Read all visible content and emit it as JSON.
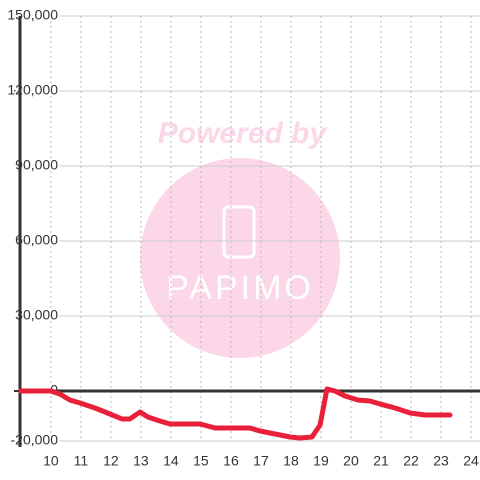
{
  "chart_data": {
    "type": "line",
    "watermark": {
      "line1": "Powered by",
      "line2": "PAPIMO"
    },
    "x": [
      9.0,
      10.0,
      10.3,
      10.63,
      10.97,
      11.47,
      11.97,
      12.37,
      12.63,
      12.97,
      13.23,
      13.63,
      13.97,
      14.97,
      15.47,
      16.63,
      16.97,
      17.47,
      17.97,
      18.3,
      18.7,
      18.97,
      19.2,
      19.47,
      19.8,
      20.23,
      20.63,
      20.97,
      21.47,
      21.97,
      22.47,
      23.3
    ],
    "series": [
      {
        "color": "#e8203a",
        "values": [
          0,
          0,
          -1200,
          -3600,
          -4800,
          -6800,
          -9200,
          -11200,
          -11200,
          -8400,
          -10400,
          -12000,
          -13200,
          -13200,
          -14800,
          -14800,
          -16000,
          -17200,
          -18400,
          -18800,
          -18400,
          -13600,
          800,
          0,
          -2000,
          -3600,
          -4000,
          -5200,
          -6800,
          -8800,
          -9600,
          -9600
        ]
      }
    ],
    "xlim": [
      8.97,
      24.3
    ],
    "xticks": [
      10,
      11,
      12,
      13,
      14,
      15,
      16,
      17,
      18,
      19,
      20,
      21,
      22,
      23,
      24
    ],
    "ylim": [
      -20000,
      150000
    ],
    "yticks": [
      {
        "value": -20000,
        "label": "-20,000"
      },
      0,
      {
        "value": 30000,
        "label": "30,000"
      },
      {
        "value": 60000,
        "label": "60,000"
      },
      {
        "value": 90000,
        "label": "90,000"
      },
      {
        "value": 120000,
        "label": "120,000"
      },
      {
        "value": 150000,
        "label": "150,000"
      }
    ],
    "grid": true
  }
}
